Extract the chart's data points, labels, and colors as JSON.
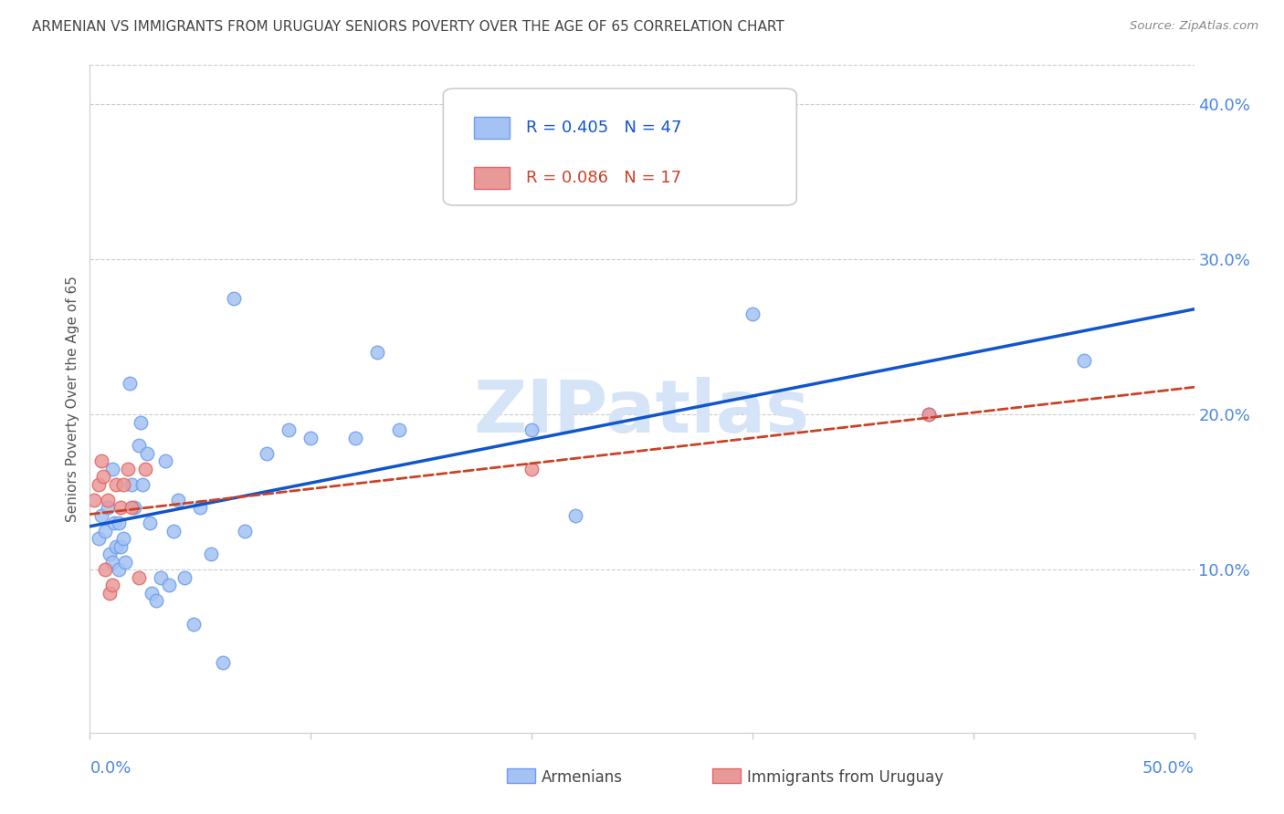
{
  "title": "ARMENIAN VS IMMIGRANTS FROM URUGUAY SENIORS POVERTY OVER THE AGE OF 65 CORRELATION CHART",
  "source": "Source: ZipAtlas.com",
  "ylabel": "Seniors Poverty Over the Age of 65",
  "y_ticks": [
    0.0,
    0.1,
    0.2,
    0.3,
    0.4
  ],
  "y_tick_labels": [
    "",
    "10.0%",
    "20.0%",
    "30.0%",
    "40.0%"
  ],
  "x_range": [
    0.0,
    0.5
  ],
  "y_range": [
    -0.005,
    0.425
  ],
  "blue_scatter_color": "#a4c2f4",
  "blue_edge_color": "#6d9eeb",
  "pink_scatter_color": "#ea9999",
  "pink_edge_color": "#e06666",
  "blue_line_color": "#1155cc",
  "pink_line_color": "#cc4125",
  "watermark_color": "#d6e4f7",
  "grid_color": "#cccccc",
  "tick_label_color": "#4a86e8",
  "title_color": "#444444",
  "source_color": "#888888",
  "legend_text_blue": "R = 0.405   N = 47",
  "legend_text_pink": "R = 0.086   N = 17",
  "legend_label_blue": "Armenians",
  "legend_label_pink": "Immigrants from Uruguay",
  "armenians_x": [
    0.004,
    0.005,
    0.007,
    0.008,
    0.009,
    0.01,
    0.01,
    0.011,
    0.012,
    0.013,
    0.013,
    0.014,
    0.015,
    0.016,
    0.018,
    0.019,
    0.02,
    0.022,
    0.023,
    0.024,
    0.026,
    0.027,
    0.028,
    0.03,
    0.032,
    0.034,
    0.036,
    0.038,
    0.04,
    0.043,
    0.047,
    0.05,
    0.055,
    0.06,
    0.065,
    0.07,
    0.08,
    0.09,
    0.1,
    0.12,
    0.13,
    0.14,
    0.2,
    0.22,
    0.3,
    0.38,
    0.45
  ],
  "armenians_y": [
    0.12,
    0.135,
    0.125,
    0.14,
    0.11,
    0.165,
    0.105,
    0.13,
    0.115,
    0.13,
    0.1,
    0.115,
    0.12,
    0.105,
    0.22,
    0.155,
    0.14,
    0.18,
    0.195,
    0.155,
    0.175,
    0.13,
    0.085,
    0.08,
    0.095,
    0.17,
    0.09,
    0.125,
    0.145,
    0.095,
    0.065,
    0.14,
    0.11,
    0.04,
    0.275,
    0.125,
    0.175,
    0.19,
    0.185,
    0.185,
    0.24,
    0.19,
    0.19,
    0.135,
    0.265,
    0.2,
    0.235
  ],
  "uruguay_x": [
    0.002,
    0.004,
    0.005,
    0.006,
    0.007,
    0.008,
    0.009,
    0.01,
    0.012,
    0.014,
    0.015,
    0.017,
    0.019,
    0.022,
    0.025,
    0.2,
    0.38
  ],
  "uruguay_y": [
    0.145,
    0.155,
    0.17,
    0.16,
    0.1,
    0.145,
    0.085,
    0.09,
    0.155,
    0.14,
    0.155,
    0.165,
    0.14,
    0.095,
    0.165,
    0.165,
    0.2
  ]
}
